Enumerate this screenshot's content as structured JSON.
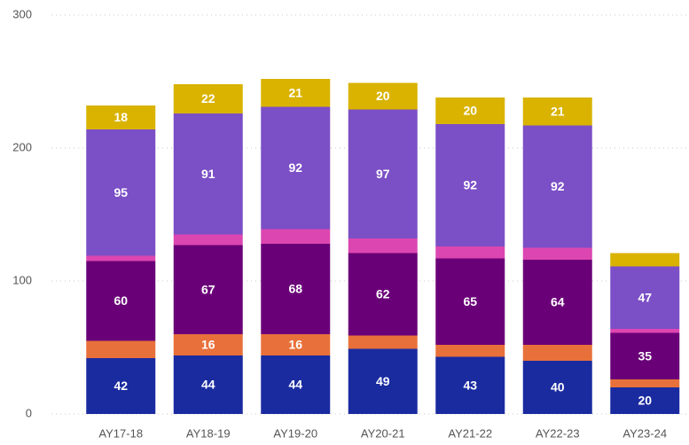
{
  "chart_data": {
    "type": "stacked_bar",
    "categories": [
      "AY17-18",
      "AY18-19",
      "AY19-20",
      "AY20-21",
      "AY21-22",
      "AY22-23",
      "AY23-24"
    ],
    "series": [
      {
        "color": "#1a2ba0",
        "values": [
          42,
          44,
          44,
          49,
          43,
          40,
          20
        ]
      },
      {
        "color": "#e8703a",
        "values": [
          13,
          16,
          16,
          10,
          9,
          12,
          6
        ]
      },
      {
        "color": "#6a0078",
        "values": [
          60,
          67,
          68,
          62,
          65,
          64,
          35
        ]
      },
      {
        "color": "#dc46b0",
        "values": [
          4,
          8,
          11,
          11,
          9,
          9,
          3
        ]
      },
      {
        "color": "#7b4fc6",
        "values": [
          95,
          91,
          92,
          97,
          92,
          92,
          47
        ]
      },
      {
        "color": "#d9b300",
        "values": [
          18,
          22,
          21,
          20,
          20,
          21,
          10
        ]
      }
    ],
    "ylim": [
      0,
      300
    ],
    "yticks": [
      0,
      100,
      200,
      300
    ],
    "grid": true
  }
}
